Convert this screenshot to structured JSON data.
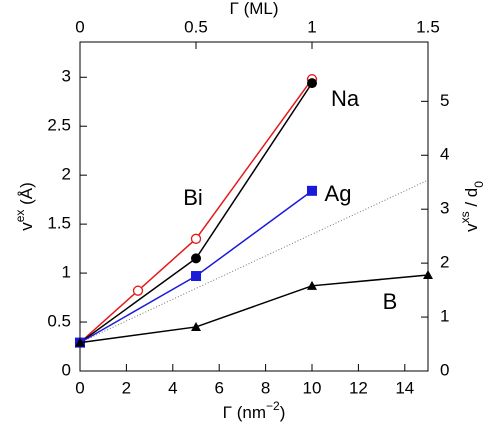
{
  "chart_data": {
    "type": "line",
    "xlabel": [
      {
        "t": "Γ (nm"
      },
      {
        "t": "−2",
        "s": "sup"
      },
      {
        "t": ")"
      }
    ],
    "x2label": [
      {
        "t": "Γ (ML)"
      }
    ],
    "ylabel": [
      {
        "t": "v"
      },
      {
        "t": "ex",
        "s": "sup"
      },
      {
        "t": " (Å)"
      }
    ],
    "y2label": [
      {
        "t": "v"
      },
      {
        "t": "xs",
        "s": "sup"
      },
      {
        "t": " / d"
      },
      {
        "t": "0",
        "s": "sub"
      }
    ],
    "xlim": [
      0,
      15
    ],
    "xticks": [
      0,
      2,
      4,
      6,
      8,
      10,
      12,
      14
    ],
    "x2lim": [
      0,
      1.5
    ],
    "x2ticks": [
      0,
      0.5,
      1,
      1.5
    ],
    "ylim": [
      0,
      3.36
    ],
    "yticks": [
      0,
      0.5,
      1,
      1.5,
      2,
      2.5,
      3
    ],
    "y2lim": [
      0,
      6.1
    ],
    "y2ticks": [
      0,
      1,
      2,
      3,
      4,
      5
    ],
    "series": [
      {
        "name": "Bi",
        "color": "#e41a1c",
        "marker": "circle-open",
        "x": [
          0,
          2.5,
          5,
          10
        ],
        "values": [
          0.29,
          0.82,
          1.35,
          2.98
        ]
      },
      {
        "name": "Na",
        "color": "#000000",
        "marker": "circle",
        "x": [
          0,
          5,
          10
        ],
        "values": [
          0.29,
          1.15,
          2.94
        ]
      },
      {
        "name": "Ag",
        "color": "#1a1adb",
        "marker": "square",
        "x": [
          0,
          5,
          10
        ],
        "values": [
          0.29,
          0.97,
          1.84
        ]
      },
      {
        "name": "B",
        "color": "#000000",
        "marker": "triangle",
        "x": [
          0,
          5,
          10,
          15
        ],
        "values": [
          0.29,
          0.45,
          0.87,
          0.98
        ]
      }
    ],
    "reference_line": {
      "color": "#777777",
      "x": [
        0,
        15
      ],
      "values": [
        0.29,
        1.95
      ]
    }
  }
}
